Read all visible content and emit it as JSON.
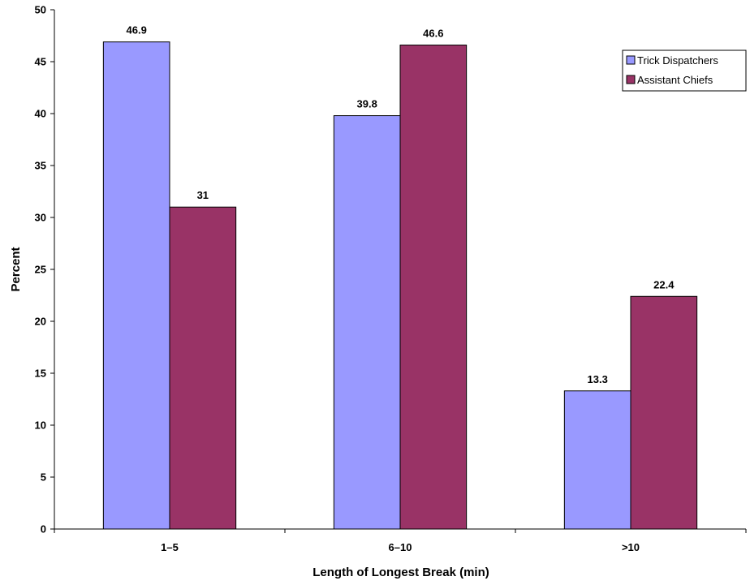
{
  "chart_data": {
    "type": "bar",
    "title": "",
    "xlabel": "Length of Longest Break (min)",
    "ylabel": "Percent",
    "categories": [
      "1–5",
      "6–10",
      ">10"
    ],
    "series": [
      {
        "name": "Trick Dispatchers",
        "color": "#9999ff",
        "values": [
          46.9,
          39.8,
          13.3
        ],
        "labels": [
          "46.9",
          "39.8",
          "13.3"
        ]
      },
      {
        "name": "Assistant Chiefs",
        "color": "#993366",
        "values": [
          31,
          46.6,
          22.4
        ],
        "labels": [
          "31",
          "46.6",
          "22.4"
        ]
      }
    ],
    "ylim": [
      0,
      50
    ],
    "yticks": [
      0,
      5,
      10,
      15,
      20,
      25,
      30,
      35,
      40,
      45,
      50
    ],
    "grid": false,
    "legend": "top-right"
  }
}
